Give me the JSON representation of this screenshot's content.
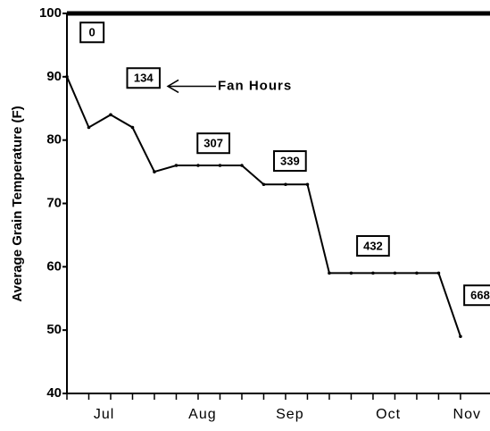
{
  "chart_data": {
    "type": "line",
    "y_label": "Average Grain Temperature (F)",
    "x": [
      0,
      1,
      2,
      3,
      4,
      5,
      6,
      7,
      8,
      9,
      10,
      11,
      12,
      13,
      14,
      15,
      16,
      17,
      18
    ],
    "series": [
      {
        "color": "#000000",
        "values": [
          90,
          82,
          84,
          82,
          75,
          76,
          76,
          76,
          76,
          73,
          73,
          73,
          59,
          59,
          59,
          59,
          59,
          59,
          49
        ]
      }
    ],
    "xlim": [
      0,
      19.35
    ],
    "xticks": [
      {
        "value": 1.7,
        "label": "Jul"
      },
      {
        "value": 6.2,
        "label": "Aug"
      },
      {
        "value": 10.2,
        "label": "Sep"
      },
      {
        "value": 14.7,
        "label": "Oct"
      },
      {
        "value": 18.3,
        "label": "Nov"
      }
    ],
    "ylim": [
      40,
      100
    ],
    "yticks": [
      40,
      50,
      60,
      70,
      80,
      90,
      100
    ],
    "annotations": [
      {
        "text": "0",
        "x": 1.15,
        "y": 97
      },
      {
        "text": "134",
        "x": 3.5,
        "y": 89.8
      },
      {
        "text": "307",
        "x": 6.7,
        "y": 79.5
      },
      {
        "text": "339",
        "x": 10.2,
        "y": 76.7
      },
      {
        "text": "432",
        "x": 14,
        "y": 63.3
      },
      {
        "text": "668",
        "x": 18.9,
        "y": 55.5
      }
    ],
    "callout": {
      "text": "Fan Hours",
      "x": 6.9,
      "y": 88.5
    }
  }
}
